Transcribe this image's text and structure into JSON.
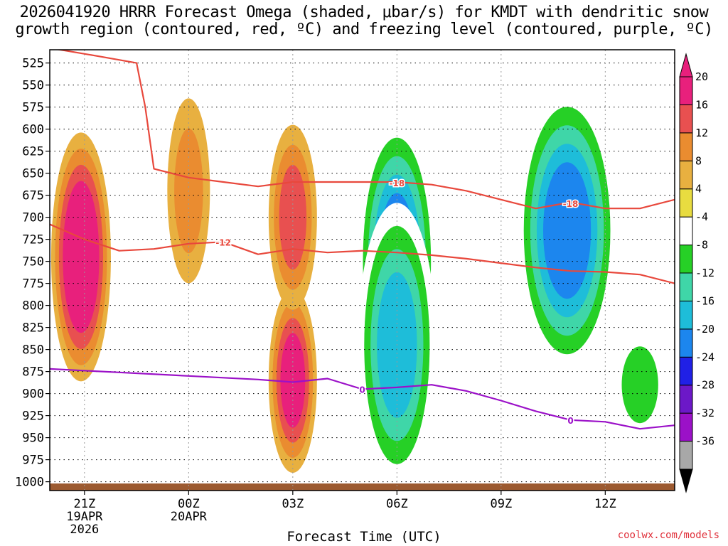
{
  "title": "2026041920 HRRR Forecast Omega (shaded, μbar/s) for KMDT with dendritic snow\ngrowth region (contoured, red, ºC) and freezing level (contoured, purple, ºC)",
  "credit": "coolwx.com/models",
  "chart_data": {
    "type": "heatmap",
    "title": "2026041920 HRRR Forecast Omega (shaded, μbar/s) for KMDT with dendritic snow growth region (contoured, red, ºC) and freezing level (contoured, purple, ºC)",
    "xlabel": "Forecast Time (UTC)",
    "ylabel": "",
    "x_ticks": [
      {
        "h": 1,
        "label": "21Z",
        "sub1": "19APR",
        "sub2": "2026"
      },
      {
        "h": 4,
        "label": "00Z",
        "sub1": "20APR",
        "sub2": ""
      },
      {
        "h": 7,
        "label": "03Z",
        "sub1": "",
        "sub2": ""
      },
      {
        "h": 10,
        "label": "06Z",
        "sub1": "",
        "sub2": ""
      },
      {
        "h": 13,
        "label": "09Z",
        "sub1": "",
        "sub2": ""
      },
      {
        "h": 16,
        "label": "12Z",
        "sub1": "",
        "sub2": ""
      }
    ],
    "xlim": [
      0,
      18
    ],
    "y_scale": "pressure (hPa), inverted",
    "ylim": [
      510,
      1010
    ],
    "y_ticks": [
      525,
      550,
      575,
      600,
      625,
      650,
      675,
      700,
      725,
      750,
      775,
      800,
      825,
      850,
      875,
      900,
      925,
      950,
      975,
      1000
    ],
    "grid": true,
    "colorbar": {
      "placement": "right",
      "labels": [
        "20",
        "16",
        "12",
        "8",
        "4",
        "-4",
        "-8",
        "-12",
        "-16",
        "-20",
        "-24",
        "-28",
        "-32",
        "-36"
      ],
      "levels": [
        -36,
        -32,
        -28,
        -24,
        -20,
        -16,
        -12,
        -8,
        -4,
        4,
        8,
        12,
        16,
        20
      ],
      "colors": [
        "#a8a8a8",
        "#9b11c8",
        "#6c18c8",
        "#2020e6",
        "#1c86ee",
        "#1ebdd9",
        "#3fd6a8",
        "#26d026",
        "#ffffff",
        "#e8dc40",
        "#e8b040",
        "#ea8c30",
        "#e85050",
        "#e8207c"
      ],
      "under_color": "#000000",
      "over_color": "#e8207c"
    },
    "omega_features": [
      {
        "h": 0.9,
        "p": 745,
        "value": 22,
        "sign": "upward (negative shaded scale reversed)"
      },
      {
        "h": 7.0,
        "p": 885,
        "value": 16
      },
      {
        "h": 7.0,
        "p": 700,
        "value": 14
      },
      {
        "h": 4.0,
        "p": 670,
        "value": 8
      },
      {
        "h": 10.0,
        "p": 750,
        "value": -22
      },
      {
        "h": 10.0,
        "p": 845,
        "value": -16
      },
      {
        "h": 14.9,
        "p": 715,
        "value": -22
      },
      {
        "h": 17.0,
        "p": 890,
        "value": -10
      }
    ],
    "series": [
      {
        "name": "-18",
        "color": "#e8483c",
        "x": [
          0,
          1.5,
          2.5,
          2.75,
          3.0,
          4.0,
          5.0,
          6.0,
          7.0,
          8.0,
          9.0,
          10.0,
          11.0,
          12.0,
          13.0,
          14.0,
          15.0,
          16.0,
          17.0,
          18.0
        ],
        "y": [
          508,
          518,
          525,
          575,
          645,
          655,
          660,
          665,
          660,
          660,
          660,
          660,
          663,
          670,
          680,
          690,
          683,
          690,
          690,
          680
        ]
      },
      {
        "name": "-12",
        "color": "#e8483c",
        "x": [
          0,
          1.0,
          2.0,
          3.0,
          4.0,
          5.0,
          6.0,
          7.0,
          8.0,
          9.0,
          10.0,
          11.0,
          12.0,
          13.0,
          14.0,
          15.0,
          16.0,
          17.0,
          18.0
        ],
        "y": [
          708,
          725,
          738,
          736,
          730,
          728,
          742,
          736,
          740,
          738,
          740,
          743,
          747,
          752,
          757,
          761,
          762,
          765,
          775
        ]
      },
      {
        "name": "0",
        "color": "#9b11c8",
        "x": [
          0,
          2.0,
          4.0,
          6.0,
          7.0,
          8.0,
          9.0,
          10.0,
          11.0,
          12.0,
          13.0,
          14.0,
          15.0,
          16.0,
          17.0,
          18.0
        ],
        "y": [
          872,
          876,
          880,
          884,
          887,
          883,
          895,
          893,
          890,
          897,
          908,
          920,
          930,
          932,
          940,
          936
        ]
      }
    ],
    "series_labels": [
      {
        "series": "-18",
        "h": 10.0,
        "p": 661
      },
      {
        "series": "-18",
        "h": 15.0,
        "p": 684
      },
      {
        "series": "-12",
        "h": 5.0,
        "p": 728
      },
      {
        "series": "0",
        "h": 9.0,
        "p": 895
      },
      {
        "series": "0",
        "h": 15.0,
        "p": 930
      }
    ]
  }
}
